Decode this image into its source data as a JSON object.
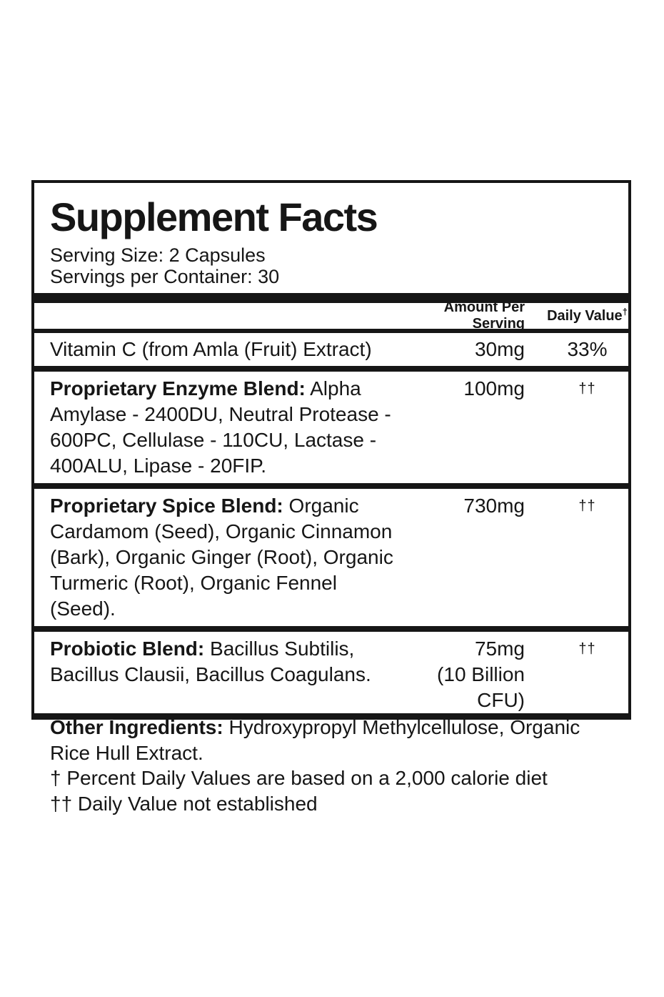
{
  "colors": {
    "text": "#161616",
    "background": "#ffffff"
  },
  "panel": {
    "title": "Supplement Facts",
    "serving_size": "Serving Size: 2 Capsules",
    "servings_per_container": "Servings per Container: 30",
    "columns": {
      "amount": "Amount Per Serving",
      "daily_value": "Daily Value",
      "daily_value_sup": "†"
    },
    "rows": [
      {
        "name": "Vitamin C (from Amla (Fruit) Extract)",
        "amount": "30mg",
        "dv": "33%"
      },
      {
        "name_bold": "Proprietary Enzyme Blend:",
        "name_rest": " Alpha Amylase - 2400DU, Neutral Protease - 600PC, Cellulase - 110CU, Lactase - 400ALU, Lipase - 20FIP.",
        "amount": "100mg",
        "dv": "††"
      },
      {
        "name_bold": "Proprietary Spice Blend:",
        "name_rest": " Organic Cardamom (Seed), Organic Cinnamon (Bark), Organic Ginger (Root), Organic Turmeric (Root), Organic Fennel (Seed).",
        "amount": "730mg",
        "dv": "††"
      },
      {
        "name_bold": "Probiotic Blend:",
        "name_rest": " Bacillus Subtilis, Bacillus Clausii, Bacillus Coagulans.",
        "amount_lines": [
          "75mg",
          "(10 Billion",
          "CFU)"
        ],
        "dv": "††"
      }
    ]
  },
  "footer": {
    "other_ingredients_bold": "Other Ingredients:",
    "other_ingredients_rest": " Hydroxypropyl Methylcellulose, Organic Rice Hull Extract.",
    "percent_dv_note": "† Percent Daily Values are based on a 2,000 calorie diet",
    "dv_not_established_note": "†† Daily Value not established"
  }
}
